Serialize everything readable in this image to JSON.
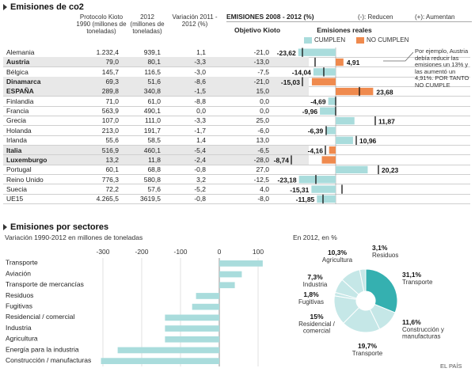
{
  "colors": {
    "cumplen": "#a9dcdc",
    "no_cumplen": "#ef8a4e",
    "highlight": "#e8e8e8",
    "pie_main": "#35b0b0",
    "pie_light": "#c5e7e7"
  },
  "section1": {
    "title": "Emisiones de co2",
    "headers": {
      "kioto": "Protocolo Kioto 1990 (millones de toneladas)",
      "y2012": "2012 (millones de toneladas)",
      "variacion": "Variación 2011 - 2012 (%)",
      "emisiones_title": "EMISIONES 2008 - 2012 (%)",
      "reducen": "(-): Reducen",
      "aumentan": "(+): Aumentan",
      "objetivo": "Objetivo Kioto",
      "reales": "Emisiones reales"
    },
    "legend": {
      "cumplen": "CUMPLEN",
      "no_cumplen": "NO CUMPLEN"
    },
    "note": "Por ejemplo, Austria debía reducir las emisiones un 13% y las aumentó un 4,91%. POR TANTO NO CUMPLE"
  },
  "section2": {
    "title": "Emisiones por sectores",
    "bar_subtitle": "Variación 1990-2012 en millones de toneladas",
    "pie_subtitle": "En 2012, en %",
    "source": "EL PAÍS"
  },
  "chart_data": [
    {
      "type": "table",
      "title": "Emisiones de co2",
      "columns": [
        "País",
        "Protocolo Kioto 1990",
        "2012",
        "Variación 2011 - 2012",
        "Objetivo Kioto",
        "Emisiones reales"
      ],
      "rows": [
        {
          "pais": "Alemania",
          "kioto": "1.232,4",
          "y2012": "939,1",
          "var": "1,1",
          "obj": "-21,0",
          "real": "-23,62",
          "real_value": -23.62,
          "obj_value": -21.0,
          "status": "cumplen",
          "bold": false,
          "highlight": false
        },
        {
          "pais": "Austria",
          "kioto": "79,0",
          "y2012": "80,1",
          "var": "-3,3",
          "obj": "-13,0",
          "real": "4,91",
          "real_value": 4.91,
          "obj_value": -13.0,
          "status": "no_cumplen",
          "bold": true,
          "highlight": true
        },
        {
          "pais": "Bélgica",
          "kioto": "145,7",
          "y2012": "116,5",
          "var": "-3,0",
          "obj": "-7,5",
          "real": "-14,04",
          "real_value": -14.04,
          "obj_value": -7.5,
          "status": "cumplen",
          "bold": false,
          "highlight": false
        },
        {
          "pais": "Dinamarca",
          "kioto": "69,3",
          "y2012": "51,6",
          "var": "-8,6",
          "obj": "-21,0",
          "real": "-15,03",
          "real_value": -15.03,
          "obj_value": -21.0,
          "status": "no_cumplen",
          "bold": true,
          "highlight": true
        },
        {
          "pais": "ESPAÑA",
          "kioto": "289,8",
          "y2012": "340,8",
          "var": "-1,5",
          "obj": "15,0",
          "real": "23,68",
          "real_value": 23.68,
          "obj_value": 15.0,
          "status": "no_cumplen",
          "bold": true,
          "highlight": true
        },
        {
          "pais": "Finlandia",
          "kioto": "71,0",
          "y2012": "61,0",
          "var": "-8,8",
          "obj": "0,0",
          "real": "-4,69",
          "real_value": -4.69,
          "obj_value": 0.0,
          "status": "cumplen",
          "bold": false,
          "highlight": false
        },
        {
          "pais": "Francia",
          "kioto": "563,9",
          "y2012": "490,1",
          "var": "0,0",
          "obj": "0,0",
          "real": "-9,96",
          "real_value": -9.96,
          "obj_value": 0.0,
          "status": "cumplen",
          "bold": false,
          "highlight": false
        },
        {
          "pais": "Grecia",
          "kioto": "107,0",
          "y2012": "111,0",
          "var": "-3,3",
          "obj": "25,0",
          "real": "11,87",
          "real_value": 11.87,
          "obj_value": 25.0,
          "status": "cumplen",
          "bold": false,
          "highlight": false
        },
        {
          "pais": "Holanda",
          "kioto": "213,0",
          "y2012": "191,7",
          "var": "-1,7",
          "obj": "-6,0",
          "real": "-6,39",
          "real_value": -6.39,
          "obj_value": -6.0,
          "status": "cumplen",
          "bold": false,
          "highlight": false
        },
        {
          "pais": "Irlanda",
          "kioto": "55,6",
          "y2012": "58,5",
          "var": "1,4",
          "obj": "13,0",
          "real": "10,96",
          "real_value": 10.96,
          "obj_value": 13.0,
          "status": "cumplen",
          "bold": false,
          "highlight": false
        },
        {
          "pais": "Italia",
          "kioto": "516,9",
          "y2012": "460,1",
          "var": "-5,4",
          "obj": "-6,5",
          "real": "-4,16",
          "real_value": -4.16,
          "obj_value": -6.5,
          "status": "no_cumplen",
          "bold": true,
          "highlight": true
        },
        {
          "pais": "Luxemburgo",
          "kioto": "13,2",
          "y2012": "11,8",
          "var": "-2,4",
          "obj": "-28,0",
          "real": "-8,74",
          "real_value": -8.74,
          "obj_value": -28.0,
          "status": "no_cumplen",
          "bold": true,
          "highlight": true
        },
        {
          "pais": "Portugal",
          "kioto": "60,1",
          "y2012": "68,8",
          "var": "-0,8",
          "obj": "27,0",
          "real": "20,23",
          "real_value": 20.23,
          "obj_value": 27.0,
          "status": "cumplen",
          "bold": false,
          "highlight": false
        },
        {
          "pais": "Reino Unido",
          "kioto": "776,3",
          "y2012": "580,8",
          "var": "3,2",
          "obj": "-12,5",
          "real": "-23,18",
          "real_value": -23.18,
          "obj_value": -12.5,
          "status": "cumplen",
          "bold": false,
          "highlight": false
        },
        {
          "pais": "Suecia",
          "kioto": "72,2",
          "y2012": "57,6",
          "var": "-5,2",
          "obj": "4,0",
          "real": "-15,31",
          "real_value": -15.31,
          "obj_value": 4.0,
          "status": "cumplen",
          "bold": false,
          "highlight": false
        },
        {
          "pais": "UE15",
          "kioto": "4.265,5",
          "y2012": "3619,5",
          "var": "-0,8",
          "obj": "-8,0",
          "real": "-11,85",
          "real_value": -11.85,
          "obj_value": -8.0,
          "status": "cumplen",
          "bold": false,
          "highlight": false
        }
      ]
    },
    {
      "type": "bar",
      "title": "Emisiones por sectores",
      "subtitle": "Variación 1990-2012 en millones de toneladas",
      "orientation": "horizontal",
      "categories": [
        "Transporte",
        "Aviación",
        "Transporte de mercancías",
        "Residuos",
        "Fugitivas",
        "Residencial / comercial",
        "Industria",
        "Agricultura",
        "Energía para la industria",
        "Construcción / manufacturas"
      ],
      "values": [
        112,
        58,
        40,
        -60,
        -70,
        -140,
        -140,
        -140,
        -262,
        -305
      ],
      "xlim": [
        -330,
        120
      ],
      "xticks": [
        -300,
        -200,
        -100,
        0,
        100
      ],
      "xtick_labels": [
        "-300",
        "-200",
        "-100",
        "0",
        "100"
      ],
      "grid": true
    },
    {
      "type": "pie",
      "subtitle": "En 2012, en %",
      "donut": true,
      "slices": [
        {
          "label": "Transporte",
          "value": 31.1,
          "text": "31,1%",
          "highlight": true
        },
        {
          "label": "Construcción y manufacturas",
          "value": 11.6,
          "text": "11,6%"
        },
        {
          "label": "Transporte",
          "value": 19.7,
          "text": "19,7%"
        },
        {
          "label": "Residencial / comercial",
          "value": 15,
          "text": "15%"
        },
        {
          "label": "Fugitivas",
          "value": 1.8,
          "text": "1,8%"
        },
        {
          "label": "Industria",
          "value": 7.3,
          "text": "7,3%"
        },
        {
          "label": "Agricultura",
          "value": 10.3,
          "text": "10,3%"
        },
        {
          "label": "Residuos",
          "value": 3.1,
          "text": "3,1%"
        }
      ]
    }
  ]
}
